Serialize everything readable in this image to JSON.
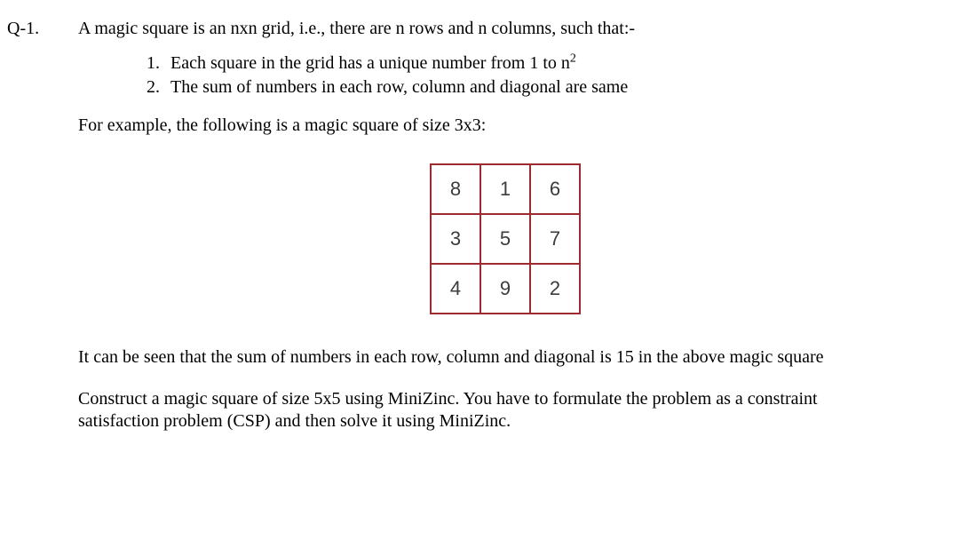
{
  "question_label": "Q-1.",
  "intro": "A magic square is an nxn grid, i.e., there are n rows and n columns, such that:-",
  "list": {
    "items": [
      {
        "num": "1.",
        "pre": "Each square in the grid has a unique number from 1 to n",
        "sup": "2",
        "post": ""
      },
      {
        "num": "2.",
        "pre": "The sum of numbers in each row, column and diagonal are same",
        "sup": "",
        "post": ""
      }
    ]
  },
  "example_line": "For example, the following is a magic square of size 3x3:",
  "magic_square": {
    "border_color": "#9c2b2f",
    "text_color": "#3c3c3c",
    "rows": [
      [
        "8",
        "1",
        "6"
      ],
      [
        "3",
        "5",
        "7"
      ],
      [
        "4",
        "9",
        "2"
      ]
    ]
  },
  "observation": "It can be seen that the sum of numbers in each row, column and diagonal is 15 in the above magic square",
  "task_l1": "Construct a magic square of size 5x5 using MiniZinc. You have to formulate the problem as a constraint",
  "task_l2": "satisfaction problem (CSP) and then solve it using MiniZinc."
}
